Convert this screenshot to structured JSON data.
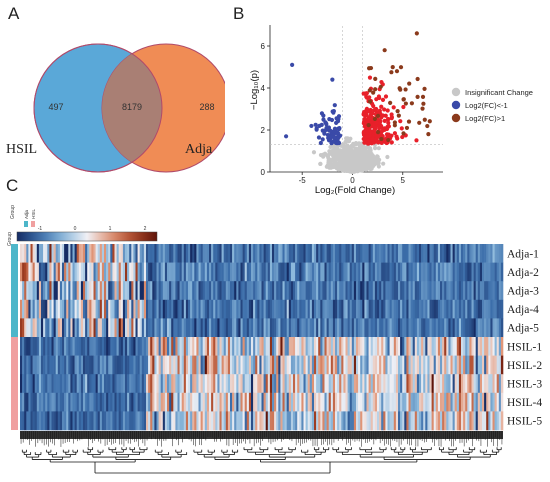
{
  "panels": {
    "a": {
      "label": "A",
      "set_left": "HSIL",
      "set_right": "Adja",
      "only_left": "497",
      "overlap": "8179",
      "only_right": "288",
      "colors": {
        "left": "#5aa8d8",
        "right": "#f08c55",
        "overlap": "#a97f74"
      }
    },
    "b": {
      "label": "B"
    },
    "c": {
      "label": "C"
    }
  },
  "chart_data": {
    "type": "scatter",
    "xlabel": "Log₂(Fold Change)",
    "ylabel": "−Log₁₀(p)",
    "xlim": [
      -8.2,
      9
    ],
    "ylim": [
      0,
      7
    ],
    "xticks": [
      -5,
      0,
      5
    ],
    "yticks": [
      0,
      2,
      4,
      6
    ],
    "legend": {
      "placement": "right"
    },
    "series": [
      {
        "name": "Insignificant Change",
        "color": "#c8c8c8"
      },
      {
        "name": "Log2(FC)<-1",
        "color": "#3a4aa8"
      },
      {
        "name": "Log2(FC)>1",
        "color": "#8b3a1c"
      }
    ]
  },
  "heatmap": {
    "group_legend_title": "Group",
    "group_legend_items": [
      "Adja",
      "HSIL"
    ],
    "group_colors": [
      "#4db6c9",
      "#f0a0a0"
    ],
    "scale_ticks": [
      "-1",
      "0",
      "1",
      "2"
    ],
    "rows": [
      "Adja-1",
      "Adja-2",
      "Adja-3",
      "Adja-4",
      "Adja-5",
      "HSIL-1",
      "HSIL-2",
      "HSIL-3",
      "HSIL-4",
      "HSIL-5"
    ]
  }
}
